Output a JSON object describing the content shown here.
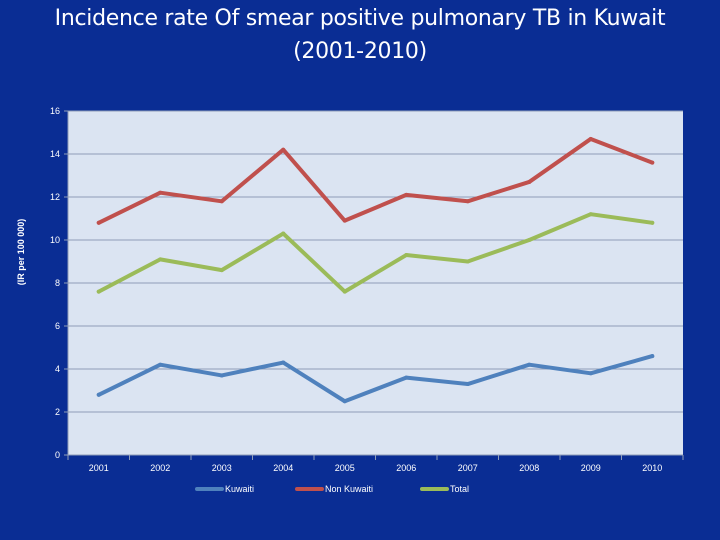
{
  "slide": {
    "title_line1": "Incidence rate Of smear positive pulmonary TB in Kuwait",
    "title_line2": "(2001-2010)"
  },
  "colors": {
    "background": "#0a2d94",
    "plot_area": "#dbe4f2",
    "gridline": "#8f9db8"
  },
  "chart_data": {
    "type": "line",
    "title": "Incidence rate Of smear positive pulmonary TB in Kuwait (2001-2010)",
    "xlabel": "",
    "ylabel": "(IR per 100 000)",
    "categories": [
      "2001",
      "2002",
      "2003",
      "2004",
      "2005",
      "2006",
      "2007",
      "2008",
      "2009",
      "2010"
    ],
    "ylim": [
      0,
      16
    ],
    "yticks": [
      0,
      2,
      4,
      6,
      8,
      10,
      12,
      14,
      16
    ],
    "grid": true,
    "legend_position": "bottom",
    "series": [
      {
        "name": "Kuwaiti",
        "color": "#4f81bd",
        "values": [
          2.8,
          4.2,
          3.7,
          4.3,
          2.5,
          3.6,
          3.3,
          4.2,
          3.8,
          4.6
        ]
      },
      {
        "name": "Non Kuwaiti",
        "color": "#c0504d",
        "values": [
          10.8,
          12.2,
          11.8,
          14.2,
          10.9,
          12.1,
          11.8,
          12.7,
          14.7,
          13.6
        ]
      },
      {
        "name": "Total",
        "color": "#9bbb59",
        "values": [
          7.6,
          9.1,
          8.6,
          10.3,
          7.6,
          9.3,
          9.0,
          10.0,
          11.2,
          10.8
        ]
      }
    ]
  }
}
